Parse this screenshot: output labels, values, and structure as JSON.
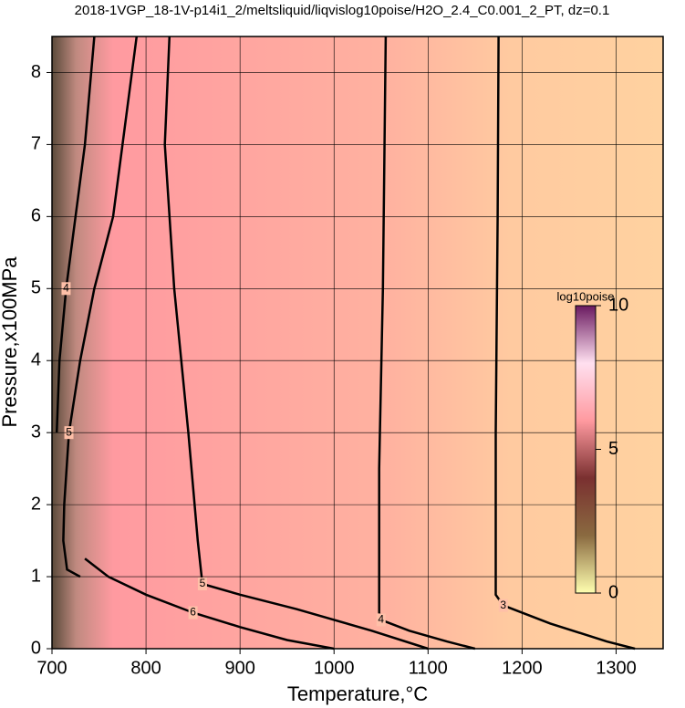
{
  "chart_data": {
    "type": "contour",
    "title": "2018-1VGP_18-1V-p14i1_2/meltsliquid/liqvislog10poise/H2O_2.4_C0.001_2_PT, dz=0.1",
    "x_label": "Temperature,°C",
    "y_label": "Pressure,x100MPa",
    "xlim": [
      700,
      1350
    ],
    "ylim": [
      0,
      8.5
    ],
    "xticks": [
      700,
      800,
      900,
      1000,
      1100,
      1200,
      1300
    ],
    "yticks": [
      0,
      1,
      2,
      3,
      4,
      5,
      6,
      7,
      8
    ],
    "grid": true,
    "colorbar": {
      "label": "log10poise",
      "lim": [
        0,
        10
      ],
      "ticks": [
        0,
        5,
        10
      ],
      "colors": [
        "#ffffb0",
        "#8a6a40",
        "#7a3030",
        "#ff9aa0",
        "#ffe0f0",
        "#6a1a60"
      ]
    },
    "contours": [
      {
        "level": 3,
        "x": [
          1175,
          1174,
          1172,
          1172,
          1180,
          1230,
          1290,
          1320
        ],
        "y": [
          8.5,
          6,
          3,
          0.75,
          0.6,
          0.35,
          0.1,
          0
        ]
      },
      {
        "level": 4,
        "x": [
          1055,
          1052,
          1048,
          1048,
          1050,
          1080,
          1120,
          1150
        ],
        "y": [
          8.5,
          5,
          2.5,
          0.5,
          0.4,
          0.25,
          0.1,
          0
        ]
      },
      {
        "level": 5,
        "x": [
          825,
          820,
          830,
          845,
          855,
          860,
          900,
          960,
          1040,
          1100
        ],
        "y": [
          8.5,
          7,
          5,
          3,
          1.5,
          0.9,
          0.75,
          0.55,
          0.25,
          0
        ]
      },
      {
        "level": 5,
        "x": [
          790,
          765,
          745,
          730,
          718,
          713,
          712,
          716,
          730
        ],
        "y": [
          8.5,
          6,
          5,
          4,
          3,
          2,
          1.5,
          1.1,
          1.0
        ]
      },
      {
        "level": 6,
        "x": [
          735,
          760,
          800,
          850,
          900,
          950,
          1000
        ],
        "y": [
          1.25,
          1.0,
          0.75,
          0.5,
          0.3,
          0.12,
          0
        ]
      },
      {
        "level": 4,
        "x": [
          745,
          735,
          725,
          715,
          708,
          705
        ],
        "y": [
          8.5,
          7,
          6,
          5,
          4,
          3
        ]
      }
    ]
  }
}
